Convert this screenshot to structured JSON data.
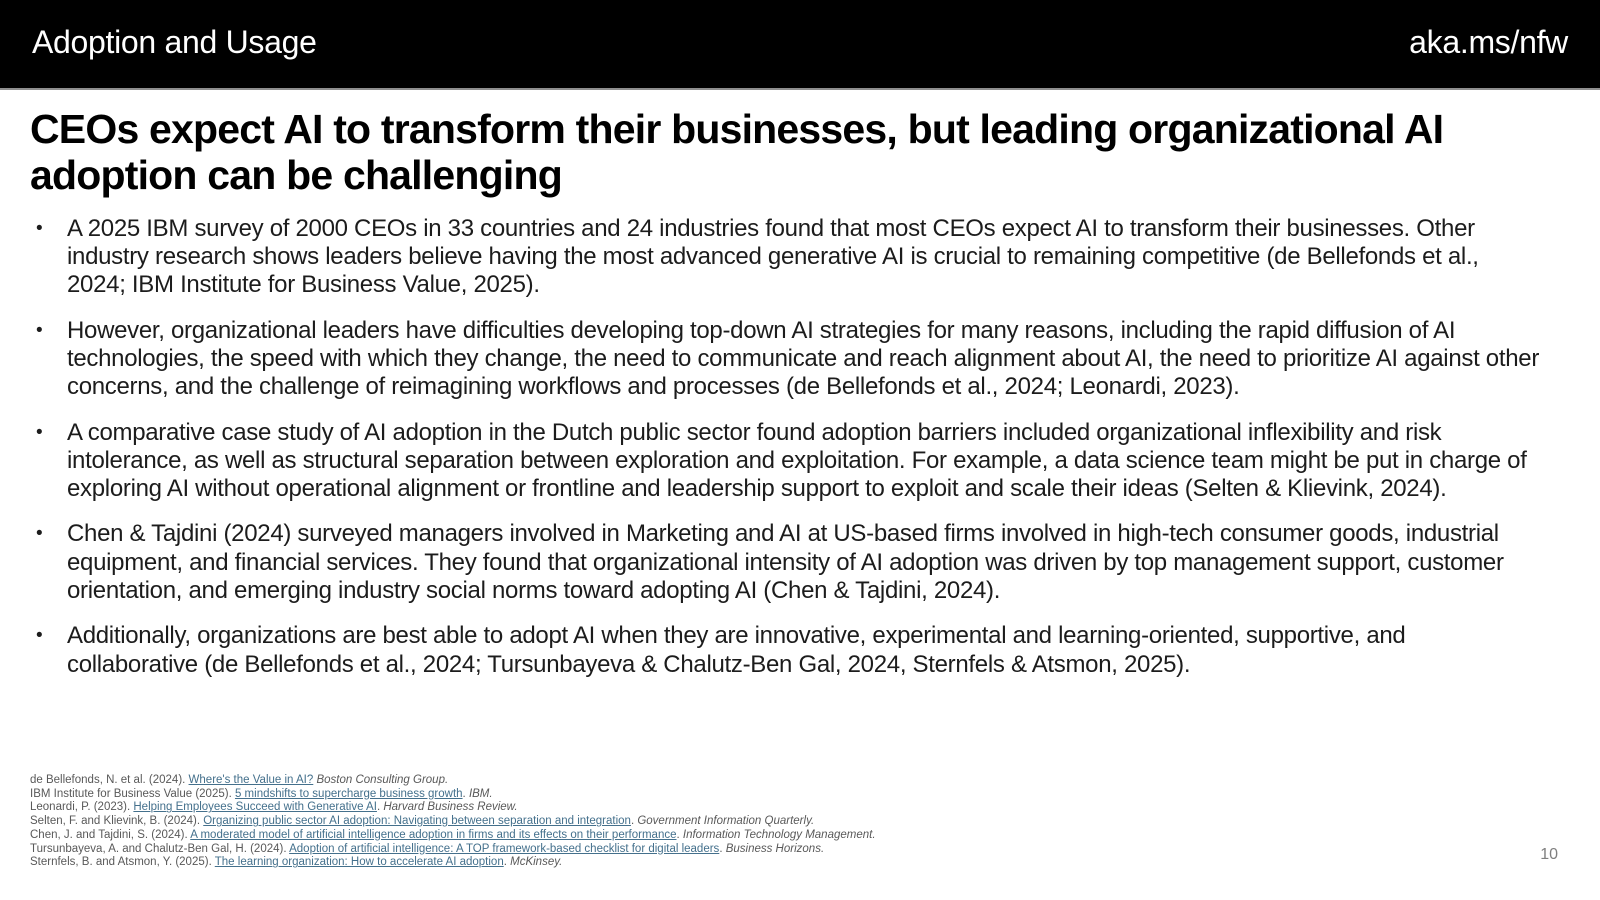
{
  "header": {
    "section_title": "Adoption and Usage",
    "link_label": "aka.ms/nfw"
  },
  "slide": {
    "title": "CEOs expect AI to transform their businesses, but leading organizational AI adoption can be challenging",
    "bullets": [
      "A 2025 IBM survey of 2000 CEOs in 33 countries and 24 industries found that most CEOs expect AI to transform their businesses. Other industry research shows leaders believe having the most advanced generative AI is crucial to remaining competitive (de Bellefonds et al., 2024; IBM Institute for Business Value, 2025).",
      "However, organizational leaders have difficulties developing top-down AI strategies for many reasons, including the rapid diffusion of AI technologies, the speed with which they change, the need to communicate and reach alignment about AI, the need to prioritize AI against other concerns, and the challenge of reimagining workflows and processes (de Bellefonds et al., 2024; Leonardi, 2023).",
      "A comparative case study of AI adoption in the Dutch public sector found adoption barriers included organizational inflexibility and risk intolerance, as well as structural separation between exploration and exploitation. For example, a data science team might be put in charge of exploring AI without operational alignment or frontline and leadership support to exploit and scale their ideas (Selten & Klievink, 2024).",
      "Chen & Tajdini (2024) surveyed managers involved in Marketing and AI at US-based firms involved in high-tech consumer goods, industrial equipment, and financial services. They found that organizational intensity of AI adoption was driven by top management support, customer orientation, and emerging industry social norms toward adopting AI (Chen & Tajdini, 2024).",
      "Additionally, organizations are best able to adopt AI when they are innovative, experimental and learning-oriented, supportive, and collaborative (de Bellefonds et al., 2024; Tursunbayeva & Chalutz-Ben Gal, 2024, Sternfels & Atsmon, 2025)."
    ],
    "bullet_marker": "•",
    "page_number": "10"
  },
  "footnotes": [
    {
      "pre": "de Bellefonds, N. et al. (2024). ",
      "link": "Where's the Value in AI?",
      "mid": " ",
      "source": "Boston Consulting Group."
    },
    {
      "pre": "IBM Institute for Business Value (2025). ",
      "link": "5 mindshifts to supercharge business growth",
      "mid": ". ",
      "source": "IBM."
    },
    {
      "pre": "Leonardi, P. (2023). ",
      "link": "Helping Employees Succeed with Generative AI",
      "mid": ". ",
      "source": "Harvard Business Review."
    },
    {
      "pre": "Selten, F. and Klievink, B. (2024). ",
      "link": "Organizing public sector AI adoption: Navigating between separation and integration",
      "mid": ". ",
      "source": "Government Information Quarterly."
    },
    {
      "pre": "Chen, J. and Tajdini, S. (2024). ",
      "link": "A moderated model of artificial intelligence adoption in firms and its effects on their performance",
      "mid": ". ",
      "source": "Information Technology Management."
    },
    {
      "pre": "Tursunbayeva, A. and Chalutz-Ben Gal, H. (2024). ",
      "link": "Adoption of artificial intelligence: A TOP framework-based checklist for digital leaders",
      "mid": ". ",
      "source": "Business Horizons."
    },
    {
      "pre": "Sternfels, B. and Atsmon, Y. (2025). ",
      "link": "The learning organization: How to accelerate AI adoption",
      "mid": ". ",
      "source": "McKinsey."
    }
  ],
  "colors": {
    "header_bg": "#000000",
    "title_text": "#000000",
    "body_text": "#1c1c1c",
    "footnote_text": "#595959",
    "link": "#44708c",
    "page_number": "#7f7f7f"
  }
}
